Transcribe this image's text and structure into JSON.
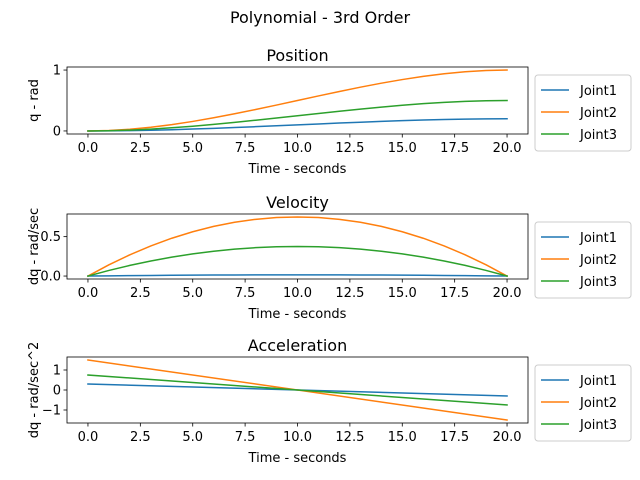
{
  "figure": {
    "suptitle": "Polynomial - 3rd Order"
  },
  "chart_data": [
    {
      "type": "line",
      "title": "Position",
      "xlabel": "Time - seconds",
      "ylabel": "q - rad",
      "xlim": [
        -1.0,
        21.0
      ],
      "ylim": [
        -0.05,
        1.05
      ],
      "xticks": [
        0.0,
        2.5,
        5.0,
        7.5,
        10.0,
        12.5,
        15.0,
        17.5,
        20.0
      ],
      "xtick_labels": [
        "0.0",
        "2.5",
        "5.0",
        "7.5",
        "10.0",
        "12.5",
        "15.0",
        "17.5",
        "20.0"
      ],
      "yticks": [
        0,
        1
      ],
      "ytick_labels": [
        "0",
        "1"
      ],
      "legend_position": "outside-right",
      "grid": false,
      "x": [
        0,
        1,
        2,
        3,
        4,
        5,
        6,
        7,
        8,
        9,
        10,
        11,
        12,
        13,
        14,
        15,
        16,
        17,
        18,
        19,
        20
      ],
      "series": [
        {
          "name": "Joint1",
          "color": "#1f77b4",
          "values": [
            0.0,
            0.0015,
            0.0056,
            0.0122,
            0.0208,
            0.0313,
            0.0432,
            0.0563,
            0.0704,
            0.0851,
            0.1,
            0.1149,
            0.1296,
            0.1437,
            0.1568,
            0.1688,
            0.1792,
            0.1879,
            0.1944,
            0.1986,
            0.2
          ]
        },
        {
          "name": "Joint2",
          "color": "#ff7f0e",
          "values": [
            0.0,
            0.0073,
            0.028,
            0.0608,
            0.104,
            0.1563,
            0.216,
            0.2818,
            0.352,
            0.4253,
            0.5,
            0.5748,
            0.648,
            0.7183,
            0.784,
            0.8438,
            0.896,
            0.9393,
            0.972,
            0.9928,
            1.0
          ]
        },
        {
          "name": "Joint3",
          "color": "#2ca02c",
          "values": [
            0.0,
            0.0036,
            0.014,
            0.0304,
            0.052,
            0.0781,
            0.108,
            0.1409,
            0.176,
            0.2126,
            0.25,
            0.2874,
            0.324,
            0.3591,
            0.392,
            0.4219,
            0.448,
            0.4696,
            0.486,
            0.4964,
            0.5
          ]
        }
      ]
    },
    {
      "type": "line",
      "title": "Velocity",
      "xlabel": "Time - seconds",
      "ylabel": "dq - rad/sec",
      "xlim": [
        -1.0,
        21.0
      ],
      "ylim": [
        -0.0375,
        0.7875
      ],
      "xticks": [
        0.0,
        2.5,
        5.0,
        7.5,
        10.0,
        12.5,
        15.0,
        17.5,
        20.0
      ],
      "xtick_labels": [
        "0.0",
        "2.5",
        "5.0",
        "7.5",
        "10.0",
        "12.5",
        "15.0",
        "17.5",
        "20.0"
      ],
      "yticks": [
        0.0,
        0.5
      ],
      "ytick_labels": [
        "0.0",
        "0.5"
      ],
      "legend_position": "outside-right",
      "grid": false,
      "x": [
        0,
        1,
        2,
        3,
        4,
        5,
        6,
        7,
        8,
        9,
        10,
        11,
        12,
        13,
        14,
        15,
        16,
        17,
        18,
        19,
        20
      ],
      "series": [
        {
          "name": "Joint1",
          "color": "#1f77b4",
          "values": [
            0.0,
            0.0029,
            0.0054,
            0.0077,
            0.0096,
            0.0113,
            0.0126,
            0.0137,
            0.0144,
            0.0149,
            0.015,
            0.0149,
            0.0144,
            0.0137,
            0.0126,
            0.0113,
            0.0096,
            0.0077,
            0.0054,
            0.0029,
            0.0
          ]
        },
        {
          "name": "Joint2",
          "color": "#ff7f0e",
          "values": [
            0.0,
            0.1425,
            0.27,
            0.3825,
            0.48,
            0.5625,
            0.63,
            0.6825,
            0.72,
            0.7425,
            0.75,
            0.7425,
            0.72,
            0.6825,
            0.63,
            0.5625,
            0.48,
            0.3825,
            0.27,
            0.1425,
            0.0
          ]
        },
        {
          "name": "Joint3",
          "color": "#2ca02c",
          "values": [
            0.0,
            0.0713,
            0.135,
            0.1913,
            0.24,
            0.2813,
            0.315,
            0.3413,
            0.36,
            0.3713,
            0.375,
            0.3713,
            0.36,
            0.3413,
            0.315,
            0.2813,
            0.24,
            0.1913,
            0.135,
            0.0713,
            0.0
          ]
        }
      ]
    },
    {
      "type": "line",
      "title": "Acceleration",
      "xlabel": "Time - seconds",
      "ylabel": "dq - rad/sec^2",
      "xlim": [
        -1.0,
        21.0
      ],
      "ylim": [
        -1.65,
        1.65
      ],
      "xticks": [
        0.0,
        2.5,
        5.0,
        7.5,
        10.0,
        12.5,
        15.0,
        17.5,
        20.0
      ],
      "xtick_labels": [
        "0.0",
        "2.5",
        "5.0",
        "7.5",
        "10.0",
        "12.5",
        "15.0",
        "17.5",
        "20.0"
      ],
      "yticks": [
        1,
        0,
        -1
      ],
      "ytick_labels": [
        "1",
        "0",
        "−1"
      ],
      "legend_position": "outside-right",
      "grid": false,
      "x": [
        0,
        20
      ],
      "series": [
        {
          "name": "Joint1",
          "color": "#1f77b4",
          "values": [
            0.3,
            -0.3
          ]
        },
        {
          "name": "Joint2",
          "color": "#ff7f0e",
          "values": [
            1.5,
            -1.5
          ]
        },
        {
          "name": "Joint3",
          "color": "#2ca02c",
          "values": [
            0.75,
            -0.75
          ]
        }
      ]
    }
  ]
}
